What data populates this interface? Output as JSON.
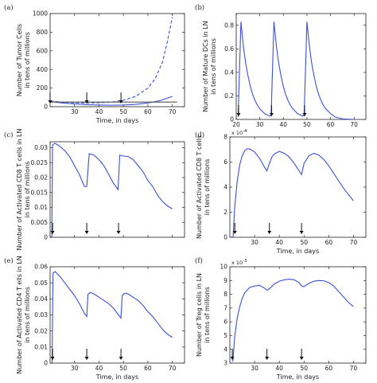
{
  "chart_data": [
    {
      "type": "line",
      "panel_label": "(a)",
      "ylabel": [
        "Number of Tumor Cells",
        "in tens of millions"
      ],
      "xlabel": "Time, in days",
      "xlim": [
        20,
        75
      ],
      "ylim": [
        0,
        1000
      ],
      "xticks": [
        30,
        40,
        50,
        60,
        70
      ],
      "yticks": [
        0,
        200,
        400,
        600,
        800,
        1000
      ],
      "arrows_at": [
        20,
        35,
        49
      ],
      "series": [
        {
          "style": "dashed",
          "color": "#3a4fd8",
          "x": [
            20,
            25,
            30,
            35,
            40,
            45,
            50,
            55,
            60,
            63,
            66,
            68,
            70
          ],
          "y": [
            60,
            48,
            42,
            40,
            42,
            50,
            70,
            110,
            200,
            300,
            480,
            700,
            960
          ]
        },
        {
          "style": "solid",
          "color": "#3a4fd8",
          "x": [
            20,
            25,
            30,
            35,
            40,
            45,
            50,
            55,
            60,
            65,
            70
          ],
          "y": [
            55,
            40,
            30,
            22,
            18,
            16,
            18,
            25,
            40,
            65,
            110
          ]
        },
        {
          "style": "solid",
          "color": "#555555",
          "x": [
            20,
            72
          ],
          "y": [
            50,
            50
          ]
        }
      ]
    },
    {
      "type": "line",
      "panel_label": "(b)",
      "ylabel": [
        "Number of Mature DCs in LN",
        "in tens of millions"
      ],
      "xlabel": "",
      "xlim": [
        20,
        75
      ],
      "ylim": [
        0,
        0.9
      ],
      "xticks": [
        20,
        30,
        40,
        50,
        60,
        70
      ],
      "yticks": [
        0,
        0.2,
        0.4,
        0.6,
        0.8
      ],
      "arrows_at": [
        21,
        35,
        49
      ],
      "series": [
        {
          "style": "solid",
          "color": "#3a4fd8",
          "x": [
            20.8,
            22,
            23,
            24,
            25,
            26,
            27,
            28,
            29,
            30,
            31,
            32,
            33,
            34,
            34.8,
            36,
            37,
            38,
            39,
            40,
            41,
            42,
            43,
            44,
            45,
            46,
            47,
            48,
            48.8,
            50,
            51,
            52,
            53,
            54,
            55,
            56,
            57,
            58,
            60,
            62,
            65,
            70
          ],
          "y": [
            0.02,
            0.83,
            0.63,
            0.48,
            0.37,
            0.28,
            0.21,
            0.16,
            0.12,
            0.09,
            0.07,
            0.05,
            0.04,
            0.03,
            0.03,
            0.83,
            0.63,
            0.48,
            0.37,
            0.28,
            0.21,
            0.16,
            0.12,
            0.09,
            0.07,
            0.05,
            0.04,
            0.03,
            0.03,
            0.83,
            0.63,
            0.48,
            0.37,
            0.28,
            0.21,
            0.16,
            0.12,
            0.09,
            0.05,
            0.02,
            0.005,
            0.0
          ]
        }
      ]
    },
    {
      "type": "line",
      "panel_label": "(c)",
      "ylabel": [
        "Number of Activated CD8 T cells in LN",
        "in tens of millions"
      ],
      "xlabel": "",
      "xlim": [
        20,
        75
      ],
      "ylim": [
        0,
        0.032
      ],
      "xticks": [
        20,
        30,
        40,
        50,
        60,
        70
      ],
      "yticks": [
        0,
        0.005,
        0.01,
        0.015,
        0.02,
        0.025,
        0.03
      ],
      "ytick_labels": [
        "0",
        "0.005",
        "0.01",
        "0.015",
        "0.02",
        "0.025",
        "0.03"
      ],
      "arrows_at": [
        21,
        35,
        48
      ],
      "series": [
        {
          "style": "solid",
          "color": "#3a4fd8",
          "x": [
            20.7,
            21,
            22,
            24,
            26,
            28,
            30,
            32,
            34,
            35,
            36,
            38,
            40,
            42,
            44,
            46,
            47.8,
            48.5,
            50,
            52,
            54,
            56,
            58,
            60,
            62,
            64,
            66,
            68,
            70
          ],
          "y": [
            0.0,
            0.031,
            0.0315,
            0.0305,
            0.029,
            0.027,
            0.024,
            0.021,
            0.017,
            0.017,
            0.028,
            0.0275,
            0.026,
            0.024,
            0.021,
            0.018,
            0.016,
            0.0275,
            0.0272,
            0.027,
            0.026,
            0.024,
            0.022,
            0.019,
            0.017,
            0.014,
            0.012,
            0.0105,
            0.0095
          ]
        }
      ]
    },
    {
      "type": "line",
      "panel_label": "(d)",
      "ylabel": [
        "Number of Activated CD8 T cells",
        "in tens of millions"
      ],
      "xlabel": "Time, in days",
      "exponent": "x 10",
      "exponent_power": "-4",
      "xlim": [
        20,
        75
      ],
      "ylim": [
        0,
        8
      ],
      "xticks": [
        30,
        40,
        50,
        60,
        70
      ],
      "yticks": [
        0,
        2,
        4,
        6,
        8
      ],
      "arrows_at": [
        22,
        36,
        49
      ],
      "series": [
        {
          "style": "solid",
          "color": "#3a4fd8",
          "x": [
            21.3,
            22,
            23,
            24,
            25,
            26,
            27,
            28,
            30,
            32,
            34,
            35,
            36,
            37,
            38,
            40,
            42,
            44,
            46,
            48,
            49,
            50,
            52,
            54,
            56,
            58,
            60,
            62,
            64,
            66,
            68,
            70
          ],
          "y": [
            0.0,
            2.5,
            4.5,
            5.8,
            6.5,
            6.9,
            7.05,
            7.05,
            6.8,
            6.3,
            5.6,
            5.3,
            5.9,
            6.4,
            6.65,
            6.85,
            6.7,
            6.4,
            5.9,
            5.3,
            5.0,
            5.9,
            6.5,
            6.7,
            6.55,
            6.2,
            5.7,
            5.1,
            4.5,
            3.9,
            3.4,
            2.9
          ]
        }
      ]
    },
    {
      "type": "line",
      "panel_label": "(e)",
      "ylabel": [
        "Number of Activated CD4 T ells in LN",
        "in tens of millions"
      ],
      "xlabel": "Time, in days",
      "xlim": [
        20,
        75
      ],
      "ylim": [
        0,
        0.06
      ],
      "xticks": [
        30,
        40,
        50,
        60,
        70
      ],
      "yticks": [
        0,
        0.01,
        0.02,
        0.03,
        0.04,
        0.05,
        0.06
      ],
      "ytick_labels": [
        "0",
        "0.01",
        "0.02",
        "0.03",
        "0.04",
        "0.05",
        "0.06"
      ],
      "arrows_at": [
        21,
        35,
        49
      ],
      "series": [
        {
          "style": "solid",
          "color": "#3a4fd8",
          "x": [
            20.8,
            21.2,
            22,
            24,
            26,
            28,
            30,
            32,
            34,
            35,
            35.5,
            36.5,
            38,
            40,
            42,
            44,
            46,
            48,
            49,
            49.5,
            50.5,
            52,
            54,
            56,
            58,
            60,
            62,
            64,
            66,
            68,
            70
          ],
          "y": [
            0.0,
            0.056,
            0.057,
            0.054,
            0.05,
            0.046,
            0.042,
            0.037,
            0.031,
            0.029,
            0.043,
            0.044,
            0.043,
            0.041,
            0.039,
            0.037,
            0.034,
            0.03,
            0.028,
            0.042,
            0.0435,
            0.043,
            0.041,
            0.039,
            0.036,
            0.032,
            0.029,
            0.025,
            0.021,
            0.018,
            0.016
          ]
        }
      ]
    },
    {
      "type": "line",
      "panel_label": "(f)",
      "ylabel": [
        "Number of Treg cells in LN",
        "in tens of millions"
      ],
      "xlabel": "Time, in days",
      "exponent": "x 10",
      "exponent_power": "-3",
      "xlim": [
        20,
        75
      ],
      "ylim": [
        3,
        10
      ],
      "xticks": [
        30,
        40,
        50,
        60,
        70
      ],
      "yticks": [
        3,
        4,
        5,
        6,
        7,
        8,
        9,
        10
      ],
      "arrows_at": [
        21,
        35,
        49
      ],
      "series": [
        {
          "style": "solid",
          "color": "#3a4fd8",
          "x": [
            21.2,
            22,
            23,
            24,
            25,
            26,
            28,
            30,
            32,
            34,
            35,
            36,
            38,
            40,
            42,
            44,
            46,
            48,
            49,
            50,
            52,
            54,
            56,
            58,
            60,
            62,
            64,
            66,
            68,
            70
          ],
          "y": [
            3.1,
            5.0,
            6.3,
            7.1,
            7.7,
            8.1,
            8.5,
            8.6,
            8.65,
            8.45,
            8.3,
            8.4,
            8.75,
            8.95,
            9.05,
            9.1,
            9.05,
            8.85,
            8.6,
            8.55,
            8.8,
            8.95,
            9.0,
            8.98,
            8.85,
            8.6,
            8.2,
            7.8,
            7.4,
            7.1
          ]
        }
      ]
    }
  ]
}
